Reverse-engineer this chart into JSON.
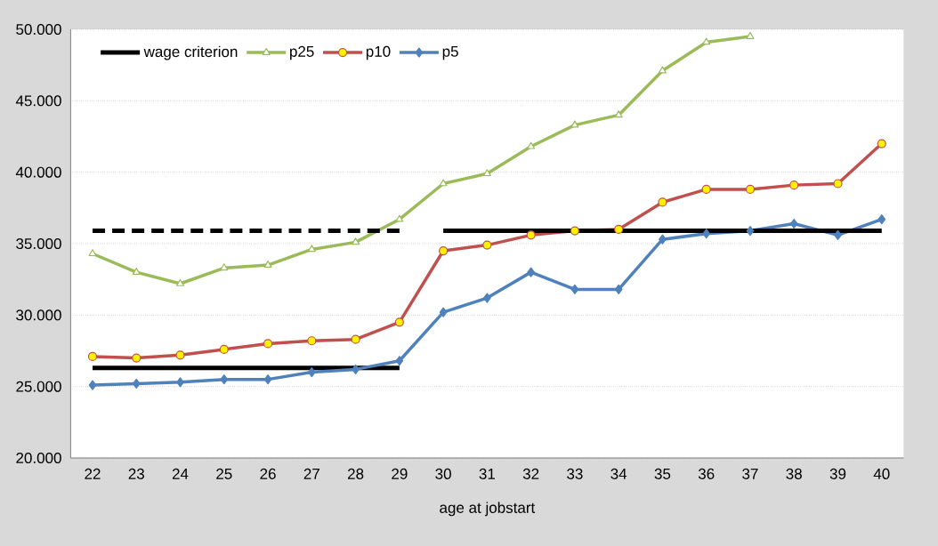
{
  "chart_data": {
    "type": "line",
    "xlabel": "age at jobstart",
    "categories": [
      "22",
      "23",
      "24",
      "25",
      "26",
      "27",
      "28",
      "29",
      "30",
      "31",
      "32",
      "33",
      "34",
      "35",
      "36",
      "37",
      "38",
      "39",
      "40"
    ],
    "series": [
      {
        "name": "wage criterion",
        "color": "#000000",
        "marker": "none",
        "line_style": "solid",
        "values": [
          26300,
          26300,
          26300,
          26300,
          26300,
          26300,
          26300,
          26300,
          null,
          null,
          null,
          null,
          null,
          null,
          null,
          null,
          null,
          null,
          null
        ]
      },
      {
        "name": "p25",
        "color": "#9bbb59",
        "marker": "triangle",
        "values": [
          34300,
          33000,
          32200,
          33300,
          33500,
          34600,
          35100,
          36700,
          39200,
          39900,
          41800,
          43300,
          44000,
          47100,
          49100,
          49500,
          null,
          null,
          null
        ]
      },
      {
        "name": "p10",
        "color": "#c0504d",
        "marker": "circle",
        "values": [
          27100,
          27000,
          27200,
          27600,
          28000,
          28200,
          28300,
          29500,
          34500,
          34900,
          35600,
          35900,
          36000,
          37900,
          38800,
          38800,
          39100,
          39200,
          42000
        ]
      },
      {
        "name": "p5",
        "color": "#4f81bd",
        "marker": "diamond",
        "values": [
          25100,
          25200,
          25300,
          25500,
          25500,
          26000,
          26200,
          26800,
          30200,
          31200,
          33000,
          31800,
          31800,
          35300,
          35700,
          35900,
          36400,
          35600,
          36700
        ]
      },
      {
        "color": "#000000",
        "marker": "none",
        "line_style": "solid",
        "values": [
          null,
          null,
          null,
          null,
          null,
          null,
          null,
          null,
          35900,
          35900,
          35900,
          35900,
          35900,
          35900,
          35900,
          35900,
          35900,
          35900,
          35900
        ]
      },
      {
        "color": "#000000",
        "marker": "none",
        "line_style": "dashed",
        "values": [
          35900,
          35900,
          35900,
          35900,
          35900,
          35900,
          35900,
          35900,
          null,
          null,
          null,
          null,
          null,
          null,
          null,
          null,
          null,
          null,
          null
        ]
      }
    ],
    "ylim": [
      20000,
      50000
    ],
    "yticks": [
      {
        "value": 20000,
        "label": "20.000"
      },
      {
        "value": 25000,
        "label": "25.000"
      },
      {
        "value": 30000,
        "label": "30.000"
      },
      {
        "value": 35000,
        "label": "35.000"
      },
      {
        "value": 40000,
        "label": "40.000"
      },
      {
        "value": 45000,
        "label": "45.000"
      },
      {
        "value": 50000,
        "label": "50.000"
      }
    ],
    "grid": "y",
    "legend": "top left"
  }
}
